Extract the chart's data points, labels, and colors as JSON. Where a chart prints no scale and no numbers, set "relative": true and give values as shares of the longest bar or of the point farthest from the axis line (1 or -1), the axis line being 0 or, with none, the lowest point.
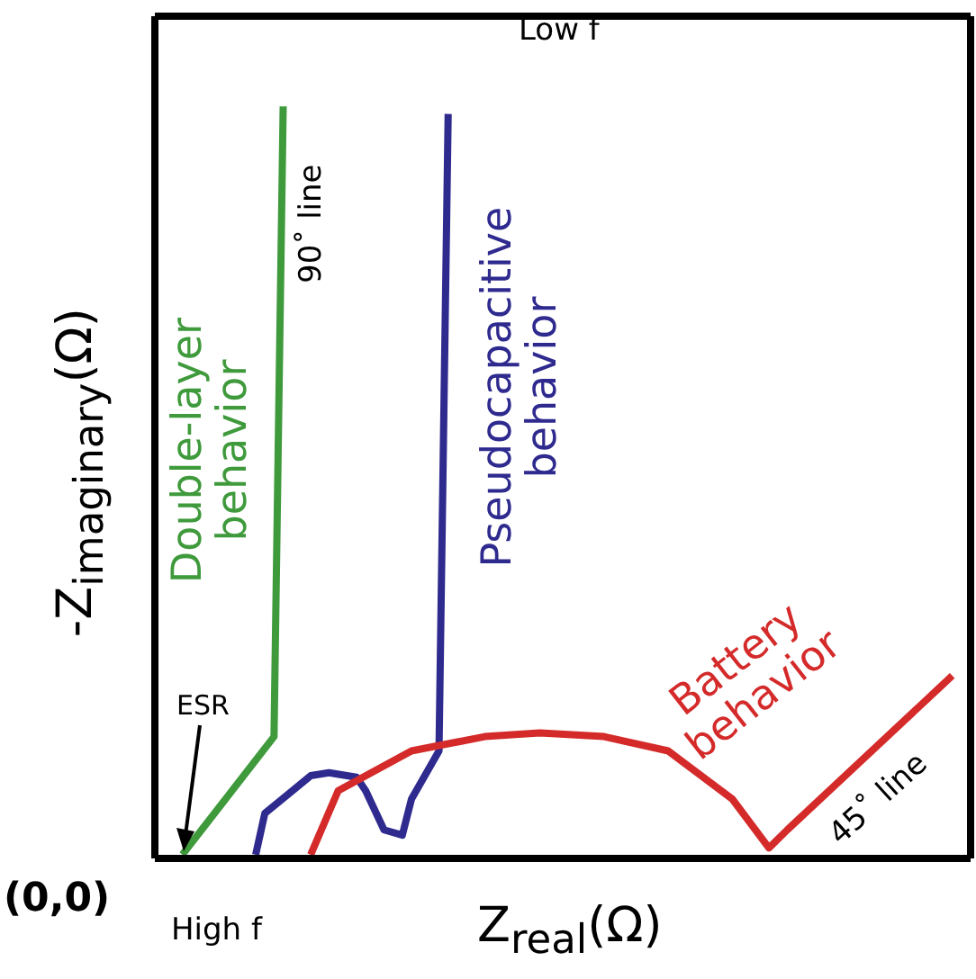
{
  "chart_data": {
    "type": "line",
    "relative": true,
    "xlabel": "Z$_{real}$(Ω)",
    "ylabel": "-Z$_{imaginary}$(Ω)",
    "annotations": [
      "Low f",
      "High f",
      "ESR",
      "90˚ line",
      "45˚ line",
      "(0,0)"
    ],
    "categories": [
      null,
      null,
      null,
      null,
      null,
      null,
      null,
      null,
      null,
      null,
      null,
      null,
      null,
      null,
      null,
      null,
      null,
      null,
      null,
      null,
      null,
      null,
      null,
      null,
      null,
      null,
      null,
      null,
      null,
      null,
      null,
      null,
      null,
      null,
      null,
      null,
      null,
      null,
      null,
      null,
      null,
      null,
      null,
      null,
      null,
      null,
      null,
      null,
      null,
      null,
      null,
      null,
      null,
      null,
      null,
      null,
      null,
      null,
      null,
      null,
      null,
      null,
      null,
      null,
      null,
      null,
      null,
      null,
      null,
      null,
      null,
      null,
      null,
      null,
      null,
      null,
      null,
      null,
      null,
      null,
      null,
      null,
      null,
      null,
      null,
      null,
      null,
      null,
      null,
      null
    ],
    "series": [
      {
        "name": "Double-layer behavior",
        "color": "#3f9a3c",
        "values": [
          null,
          null,
          null,
          0.005,
          null,
          null,
          null,
          null,
          null,
          null,
          null,
          null,
          null,
          0.162,
          1,
          null,
          null,
          null,
          null,
          null,
          null,
          null,
          null,
          null,
          null,
          null,
          null,
          null,
          null,
          null,
          null,
          null,
          null,
          null,
          null,
          null,
          null,
          null,
          null,
          null,
          null,
          null,
          null,
          null,
          null,
          null,
          null,
          null,
          null,
          null,
          null,
          null,
          null,
          null,
          null,
          null,
          null,
          null,
          null,
          null,
          null,
          null,
          null,
          null,
          null,
          null,
          null,
          null,
          null,
          null,
          null,
          null,
          null,
          null,
          null,
          null,
          null,
          null,
          null,
          null,
          null,
          null,
          null,
          null,
          null,
          null,
          null,
          null,
          null,
          null
        ]
      },
      {
        "name": "Pseudocapacitive behavior",
        "color": "#2e2a8e",
        "values": [
          null,
          null,
          null,
          null,
          null,
          null,
          null,
          null,
          null,
          null,
          null,
          0.005,
          0.06,
          null,
          null,
          0.09,
          null,
          0.11,
          null,
          0.114,
          null,
          null,
          0.108,
          0.09,
          null,
          0.038,
          null,
          0.031,
          0.079,
          null,
          null,
          0.143,
          0.99,
          null,
          null,
          null,
          null,
          null,
          null,
          null,
          null,
          null,
          null,
          null,
          null,
          null,
          null,
          null,
          null,
          null,
          null,
          null,
          null,
          null,
          null,
          null,
          null,
          null,
          null,
          null,
          null,
          null,
          null,
          null,
          null,
          null,
          null,
          null,
          null,
          null,
          null,
          null,
          null,
          null,
          null,
          null,
          null,
          null,
          null,
          null,
          null,
          null,
          null,
          null,
          null,
          null,
          null,
          null,
          null,
          null
        ]
      },
      {
        "name": "Battery behavior",
        "color": "#d42a2a",
        "values": [
          null,
          null,
          null,
          null,
          null,
          null,
          null,
          null,
          null,
          null,
          null,
          null,
          null,
          null,
          null,
          null,
          null,
          0.005,
          null,
          null,
          0.09,
          null,
          null,
          null,
          null,
          null,
          null,
          null,
          0.143,
          null,
          null,
          null,
          null,
          null,
          null,
          null,
          0.162,
          null,
          null,
          null,
          null,
          null,
          0.167,
          null,
          null,
          null,
          null,
          null,
          null,
          0.162,
          null,
          null,
          null,
          null,
          null,
          null,
          0.143,
          null,
          null,
          null,
          null,
          null,
          null,
          0.079,
          null,
          null,
          null,
          0.014,
          null,
          0.038,
          null,
          null,
          null,
          null,
          null,
          null,
          null,
          null,
          null,
          null,
          null,
          null,
          null,
          null,
          null,
          null,
          null,
          0.243,
          null,
          null
        ]
      }
    ]
  }
}
